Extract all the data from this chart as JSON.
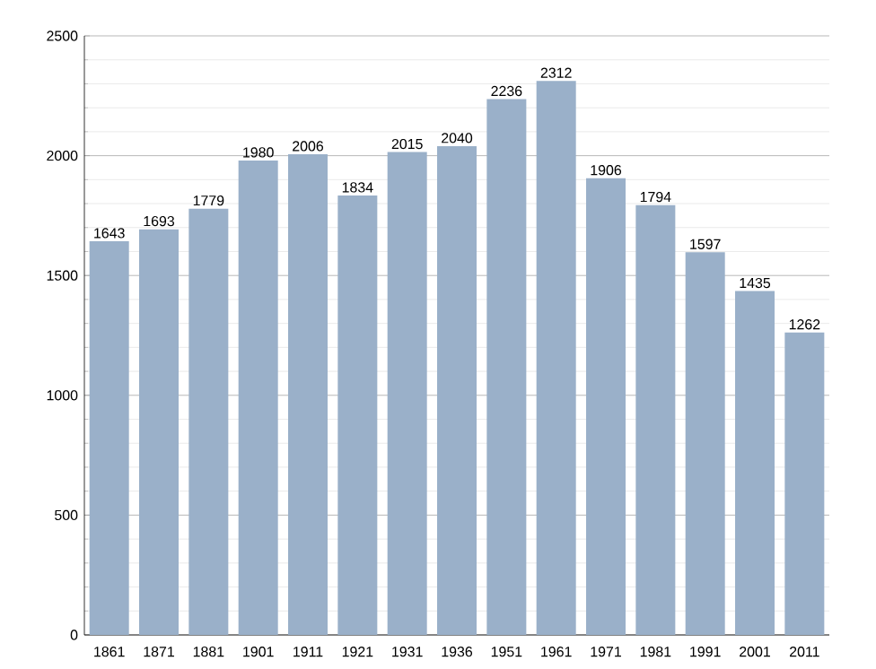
{
  "chart_data": {
    "type": "bar",
    "categories": [
      "1861",
      "1871",
      "1881",
      "1901",
      "1911",
      "1921",
      "1931",
      "1936",
      "1951",
      "1961",
      "1971",
      "1981",
      "1991",
      "2001",
      "2011"
    ],
    "values": [
      1643,
      1693,
      1779,
      1980,
      2006,
      1834,
      2015,
      2040,
      2236,
      2312,
      1906,
      1794,
      1597,
      1435,
      1262
    ],
    "color": "#9ab0c9",
    "ylim": [
      0,
      2500
    ],
    "yticks": [
      0,
      500,
      1000,
      1500,
      2000,
      2500
    ],
    "grid": "y",
    "data_labels": true
  }
}
